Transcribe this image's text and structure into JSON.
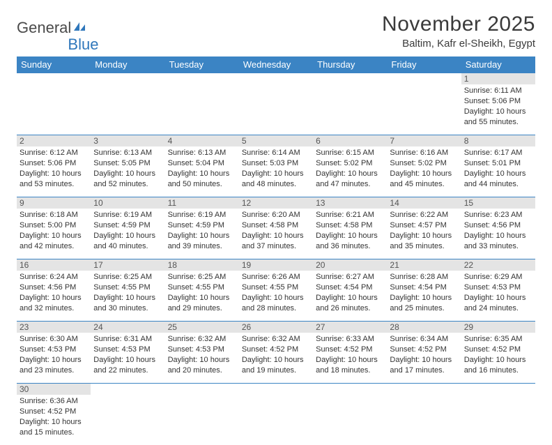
{
  "brand": {
    "part1": "General",
    "part2": "Blue"
  },
  "title": "November 2025",
  "location": "Baltim, Kafr el-Sheikh, Egypt",
  "colors": {
    "header_bg": "#3b84c4",
    "header_text": "#ffffff",
    "daynum_bg": "#e4e4e4",
    "row_border": "#3b84c4",
    "brand_gray": "#4a4a4a",
    "brand_blue": "#2f77bb"
  },
  "weekdays": [
    "Sunday",
    "Monday",
    "Tuesday",
    "Wednesday",
    "Thursday",
    "Friday",
    "Saturday"
  ],
  "weeks": [
    [
      null,
      null,
      null,
      null,
      null,
      null,
      {
        "n": "1",
        "sr": "6:11 AM",
        "ss": "5:06 PM",
        "dl": "10 hours and 55 minutes."
      }
    ],
    [
      {
        "n": "2",
        "sr": "6:12 AM",
        "ss": "5:06 PM",
        "dl": "10 hours and 53 minutes."
      },
      {
        "n": "3",
        "sr": "6:13 AM",
        "ss": "5:05 PM",
        "dl": "10 hours and 52 minutes."
      },
      {
        "n": "4",
        "sr": "6:13 AM",
        "ss": "5:04 PM",
        "dl": "10 hours and 50 minutes."
      },
      {
        "n": "5",
        "sr": "6:14 AM",
        "ss": "5:03 PM",
        "dl": "10 hours and 48 minutes."
      },
      {
        "n": "6",
        "sr": "6:15 AM",
        "ss": "5:02 PM",
        "dl": "10 hours and 47 minutes."
      },
      {
        "n": "7",
        "sr": "6:16 AM",
        "ss": "5:02 PM",
        "dl": "10 hours and 45 minutes."
      },
      {
        "n": "8",
        "sr": "6:17 AM",
        "ss": "5:01 PM",
        "dl": "10 hours and 44 minutes."
      }
    ],
    [
      {
        "n": "9",
        "sr": "6:18 AM",
        "ss": "5:00 PM",
        "dl": "10 hours and 42 minutes."
      },
      {
        "n": "10",
        "sr": "6:19 AM",
        "ss": "4:59 PM",
        "dl": "10 hours and 40 minutes."
      },
      {
        "n": "11",
        "sr": "6:19 AM",
        "ss": "4:59 PM",
        "dl": "10 hours and 39 minutes."
      },
      {
        "n": "12",
        "sr": "6:20 AM",
        "ss": "4:58 PM",
        "dl": "10 hours and 37 minutes."
      },
      {
        "n": "13",
        "sr": "6:21 AM",
        "ss": "4:58 PM",
        "dl": "10 hours and 36 minutes."
      },
      {
        "n": "14",
        "sr": "6:22 AM",
        "ss": "4:57 PM",
        "dl": "10 hours and 35 minutes."
      },
      {
        "n": "15",
        "sr": "6:23 AM",
        "ss": "4:56 PM",
        "dl": "10 hours and 33 minutes."
      }
    ],
    [
      {
        "n": "16",
        "sr": "6:24 AM",
        "ss": "4:56 PM",
        "dl": "10 hours and 32 minutes."
      },
      {
        "n": "17",
        "sr": "6:25 AM",
        "ss": "4:55 PM",
        "dl": "10 hours and 30 minutes."
      },
      {
        "n": "18",
        "sr": "6:25 AM",
        "ss": "4:55 PM",
        "dl": "10 hours and 29 minutes."
      },
      {
        "n": "19",
        "sr": "6:26 AM",
        "ss": "4:55 PM",
        "dl": "10 hours and 28 minutes."
      },
      {
        "n": "20",
        "sr": "6:27 AM",
        "ss": "4:54 PM",
        "dl": "10 hours and 26 minutes."
      },
      {
        "n": "21",
        "sr": "6:28 AM",
        "ss": "4:54 PM",
        "dl": "10 hours and 25 minutes."
      },
      {
        "n": "22",
        "sr": "6:29 AM",
        "ss": "4:53 PM",
        "dl": "10 hours and 24 minutes."
      }
    ],
    [
      {
        "n": "23",
        "sr": "6:30 AM",
        "ss": "4:53 PM",
        "dl": "10 hours and 23 minutes."
      },
      {
        "n": "24",
        "sr": "6:31 AM",
        "ss": "4:53 PM",
        "dl": "10 hours and 22 minutes."
      },
      {
        "n": "25",
        "sr": "6:32 AM",
        "ss": "4:53 PM",
        "dl": "10 hours and 20 minutes."
      },
      {
        "n": "26",
        "sr": "6:32 AM",
        "ss": "4:52 PM",
        "dl": "10 hours and 19 minutes."
      },
      {
        "n": "27",
        "sr": "6:33 AM",
        "ss": "4:52 PM",
        "dl": "10 hours and 18 minutes."
      },
      {
        "n": "28",
        "sr": "6:34 AM",
        "ss": "4:52 PM",
        "dl": "10 hours and 17 minutes."
      },
      {
        "n": "29",
        "sr": "6:35 AM",
        "ss": "4:52 PM",
        "dl": "10 hours and 16 minutes."
      }
    ],
    [
      {
        "n": "30",
        "sr": "6:36 AM",
        "ss": "4:52 PM",
        "dl": "10 hours and 15 minutes."
      },
      null,
      null,
      null,
      null,
      null,
      null
    ]
  ],
  "labels": {
    "sunrise": "Sunrise:",
    "sunset": "Sunset:",
    "daylight": "Daylight:"
  }
}
